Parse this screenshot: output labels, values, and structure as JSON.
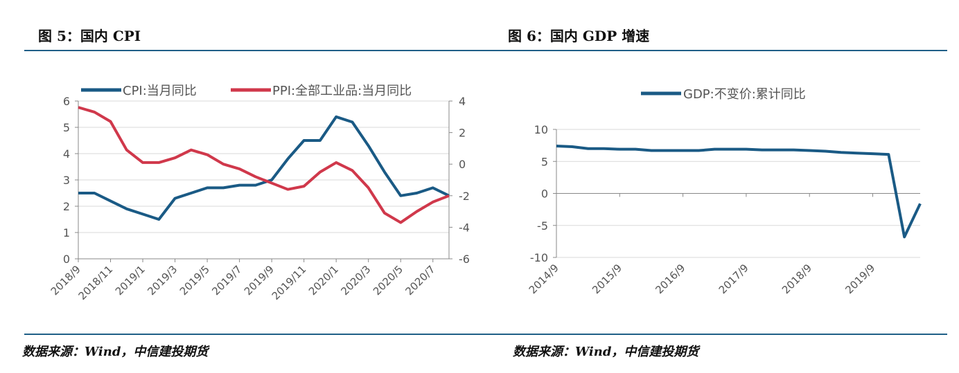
{
  "left_title": "图 5：国内 CPI",
  "right_title": "图 6：国内 GDP 增速",
  "left_source": "数据来源：Wind，中信建投期货",
  "right_source": "数据来源：Wind，中信建投期货",
  "chart_data": [
    {
      "type": "line",
      "x": [
        "2018/9",
        "2018/10",
        "2018/11",
        "2018/12",
        "2019/1",
        "2019/2",
        "2019/3",
        "2019/4",
        "2019/5",
        "2019/6",
        "2019/7",
        "2019/8",
        "2019/9",
        "2019/10",
        "2019/11",
        "2019/12",
        "2020/1",
        "2020/2",
        "2020/3",
        "2020/4",
        "2020/5",
        "2020/6",
        "2020/7",
        "2020/8"
      ],
      "xticks": [
        "2018/9",
        "2018/11",
        "2019/1",
        "2019/3",
        "2019/5",
        "2019/7",
        "2019/9",
        "2019/11",
        "2020/1",
        "2020/3",
        "2020/5",
        "2020/7"
      ],
      "series": [
        {
          "name": "CPI:当月同比",
          "axis": "left",
          "color": "#1a5a85",
          "values": [
            2.5,
            2.5,
            2.2,
            1.9,
            1.7,
            1.5,
            2.3,
            2.5,
            2.7,
            2.7,
            2.8,
            2.8,
            3.0,
            3.8,
            4.5,
            4.5,
            5.4,
            5.2,
            4.3,
            3.3,
            2.4,
            2.5,
            2.7,
            2.4
          ]
        },
        {
          "name": "PPI:全部工业品:当月同比",
          "axis": "right",
          "color": "#d0384b",
          "values": [
            3.6,
            3.3,
            2.7,
            0.9,
            0.1,
            0.1,
            0.4,
            0.9,
            0.6,
            0.0,
            -0.3,
            -0.8,
            -1.2,
            -1.6,
            -1.4,
            -0.5,
            0.1,
            -0.4,
            -1.5,
            -3.1,
            -3.7,
            -3.0,
            -2.4,
            -2.0
          ]
        }
      ],
      "ylim_left": [
        0,
        6
      ],
      "yticks_left": [
        0,
        1,
        2,
        3,
        4,
        5,
        6
      ],
      "ylim_right": [
        -6,
        4
      ],
      "yticks_right": [
        -6,
        -4,
        -2,
        0,
        2,
        4
      ],
      "grid": true,
      "legend": "top"
    },
    {
      "type": "line",
      "x": [
        "2014/9",
        "2014/12",
        "2015/3",
        "2015/6",
        "2015/9",
        "2015/12",
        "2016/3",
        "2016/6",
        "2016/9",
        "2016/12",
        "2017/3",
        "2017/6",
        "2017/9",
        "2017/12",
        "2018/3",
        "2018/6",
        "2018/9",
        "2018/12",
        "2019/3",
        "2019/6",
        "2019/9",
        "2019/12",
        "2020/3",
        "2020/6"
      ],
      "xticks": [
        "2014/9",
        "2015/9",
        "2016/9",
        "2017/9",
        "2018/9",
        "2019/9"
      ],
      "series": [
        {
          "name": "GDP:不变价:累计同比",
          "color": "#1a5a85",
          "values": [
            7.4,
            7.3,
            7.0,
            7.0,
            6.9,
            6.9,
            6.7,
            6.7,
            6.7,
            6.7,
            6.9,
            6.9,
            6.9,
            6.8,
            6.8,
            6.8,
            6.7,
            6.6,
            6.4,
            6.3,
            6.2,
            6.1,
            -6.8,
            -1.6
          ]
        }
      ],
      "ylim": [
        -10,
        10
      ],
      "yticks": [
        -10,
        -5,
        0,
        5,
        10
      ],
      "grid": true,
      "legend": "top"
    }
  ]
}
